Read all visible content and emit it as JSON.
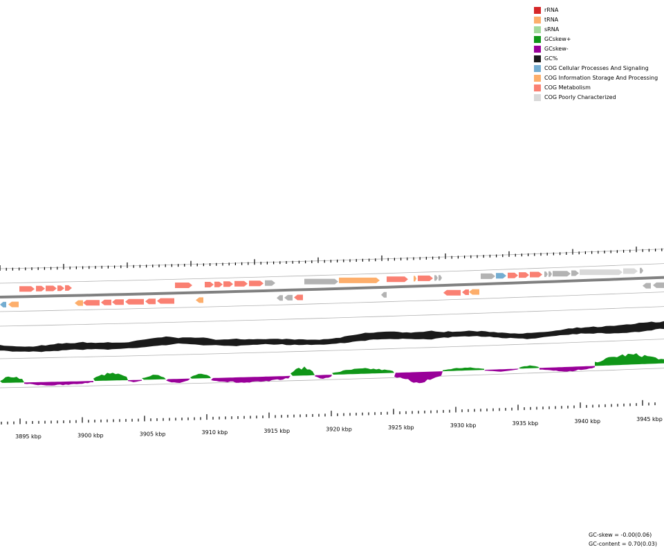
{
  "legend": {
    "items": [
      {
        "label": "rRNA",
        "color": "#d62728"
      },
      {
        "label": "tRNA",
        "color": "#fdae6b"
      },
      {
        "label": "sRNA",
        "color": "#a1d99b"
      },
      {
        "label": "GCskew+",
        "color": "#109618"
      },
      {
        "label": "GCskew-",
        "color": "#990099"
      },
      {
        "label": "GC%",
        "color": "#1a1a1a"
      },
      {
        "label": "COG Cellular Processes And Signaling",
        "color": "#74add1"
      },
      {
        "label": "COG Information Storage And Processing",
        "color": "#fdae6b"
      },
      {
        "label": "COG Metabolism",
        "color": "#fa8072"
      },
      {
        "label": "COG Poorly Characterized",
        "color": "#d9d9d9"
      }
    ]
  },
  "axis": {
    "labels": [
      "3895 kbp",
      "3900 kbp",
      "3905 kbp",
      "3910 kbp",
      "3915 kbp",
      "3920 kbp",
      "3925 kbp",
      "3930 kbp",
      "3935 kbp",
      "3940 kbp",
      "3945 kbp"
    ]
  },
  "stats": {
    "gc_skew": "GC-skew = -0.00(0.06)",
    "gc_content": "GC-content = 0.70(0.03)"
  },
  "colors": {
    "metabolism": "#fa8072",
    "info": "#fdae6b",
    "cellular": "#74add1",
    "poorly": "#d9d9d9",
    "unclassified": "#b3b3b3",
    "gc": "#1a1a1a",
    "skew_pos": "#109618",
    "skew_neg": "#990099",
    "backbone": "#808080"
  }
}
